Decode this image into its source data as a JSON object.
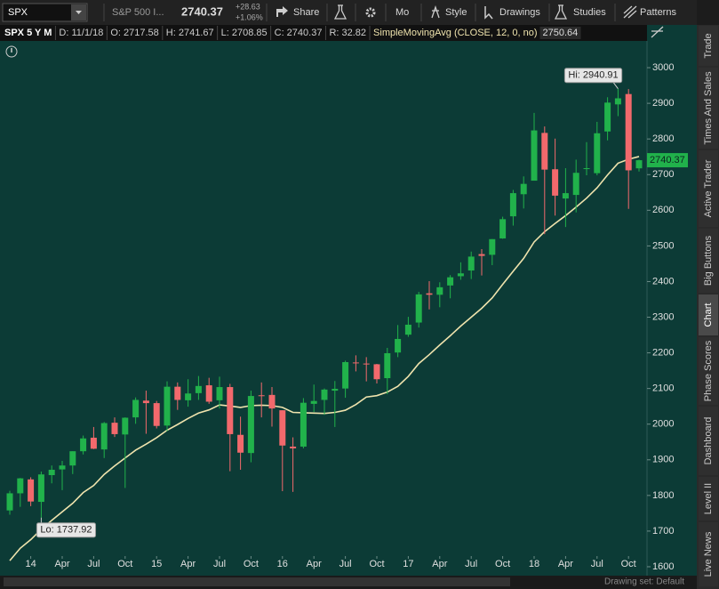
{
  "toolbar": {
    "symbol": "SPX",
    "description": "S&P 500 I...",
    "change": "+28.63",
    "change_pct": "+1.06%",
    "share": "Share",
    "period": "Mo",
    "style": "Style",
    "drawings": "Drawings",
    "studies": "Studies",
    "patterns": "Patterns"
  },
  "header": [
    "SPX 5 Y M",
    "D: 11/1/18",
    "O: 2717.58",
    "H: 2741.67",
    "L: 2708.85",
    "C: 2740.37",
    "R: 32.82"
  ],
  "sidebar_tabs": [
    "Trade",
    "Times And Sales",
    "Active Trader",
    "Big Buttons",
    "Chart",
    "Phase Scores",
    "Dashboard",
    "Level II",
    "Live News"
  ],
  "footer": "Drawing set: Default",
  "chart_data": {
    "type": "candlestick",
    "categories": [
      null,
      null,
      "14",
      null,
      null,
      "Apr",
      null,
      null,
      "Jul",
      null,
      null,
      "Oct",
      null,
      null,
      "15",
      null,
      null,
      "Apr",
      null,
      null,
      "Jul",
      null,
      null,
      "Oct",
      null,
      null,
      "16",
      null,
      null,
      "Apr",
      null,
      null,
      "Jul",
      null,
      null,
      "Oct",
      null,
      null,
      "17",
      null,
      null,
      "Apr",
      null,
      null,
      "Jul",
      null,
      null,
      "Oct",
      null,
      null,
      "18",
      null,
      null,
      "Apr",
      null,
      null,
      "Jul",
      null,
      null,
      "Oct",
      null
    ],
    "open": [
      1758,
      1806,
      1845,
      1782,
      1857,
      1873,
      1884,
      1924,
      1962,
      1929,
      2004,
      1971,
      2019,
      2066,
      2059,
      1996,
      2105,
      2067,
      2087,
      2109,
      2067,
      2104,
      1970,
      1919,
      2081,
      2082,
      2039,
      1937,
      1937,
      2057,
      2068,
      2094,
      2100,
      2173,
      2170,
      2168,
      2129,
      2201,
      2251,
      2285,
      2367,
      2363,
      2389,
      2415,
      2431,
      2477,
      2475,
      2521,
      2583,
      2645,
      2683,
      2817,
      2715,
      2633,
      2643,
      2718,
      2704,
      2821,
      2897,
      2926,
      2717.58
    ],
    "high": [
      1813,
      1849,
      1851,
      1867,
      1884,
      1897,
      1924,
      1968,
      1992,
      2006,
      2019,
      2019,
      2075,
      2094,
      2065,
      2120,
      2117,
      2126,
      2135,
      2130,
      2133,
      2113,
      2021,
      2094,
      2117,
      2104,
      2039,
      1963,
      2073,
      2111,
      2100,
      2121,
      2178,
      2193,
      2188,
      2169,
      2214,
      2278,
      2301,
      2371,
      2401,
      2398,
      2418,
      2454,
      2484,
      2491,
      2519,
      2582,
      2657,
      2695,
      2873,
      2835,
      2801,
      2718,
      2742,
      2791,
      2848,
      2917,
      2940.91,
      2940,
      2741.67
    ],
    "low": [
      1746,
      1768,
      1770,
      1737.92,
      1834,
      1815,
      1860,
      1915,
      1930,
      1905,
      1964,
      1821,
      2001,
      1973,
      1988,
      1980,
      2040,
      2049,
      2068,
      2057,
      2044,
      1868,
      1872,
      1893,
      2019,
      1993,
      1812,
      1810,
      1932,
      2034,
      2026,
      1992,
      2074,
      2148,
      2120,
      2114,
      2084,
      2188,
      2245,
      2271,
      2322,
      2328,
      2353,
      2405,
      2407,
      2417,
      2446,
      2520,
      2557,
      2605,
      2683,
      2533,
      2585,
      2553,
      2594,
      2698,
      2698,
      2796,
      2864,
      2604,
      2708.85
    ],
    "close": [
      1806,
      1848,
      1783,
      1859,
      1872,
      1884,
      1924,
      1960,
      1931,
      2003,
      1972,
      2018,
      2068,
      2059,
      1995,
      2105,
      2068,
      2086,
      2107,
      2063,
      2104,
      1972,
      1920,
      2079,
      2080,
      2044,
      1940,
      1932,
      2060,
      2065,
      2097,
      2099,
      2174,
      2171,
      2168,
      2126,
      2199,
      2239,
      2279,
      2364,
      2363,
      2384,
      2412,
      2423,
      2470,
      2472,
      2519,
      2575,
      2648,
      2674,
      2824,
      2714,
      2641,
      2648,
      2705,
      2718,
      2816,
      2902,
      2914,
      2712,
      2740.37
    ],
    "up_color": "#21b24b",
    "down_color": "#f2696c",
    "overlay": {
      "name": "SimpleMovingAvg (CLOSE, 12, 0, no)",
      "color": "#efe3ad",
      "values": [
        1617,
        1652,
        1676,
        1705,
        1730,
        1754,
        1778,
        1808,
        1828,
        1859,
        1883,
        1905,
        1927,
        1944,
        1962,
        1983,
        1999,
        2016,
        2031,
        2040,
        2054,
        2051,
        2047,
        2052,
        2053,
        2052,
        2047,
        2033,
        2032,
        2031,
        2030,
        2033,
        2039,
        2055,
        2076,
        2080,
        2090,
        2106,
        2134,
        2170,
        2195,
        2222,
        2248,
        2275,
        2300,
        2325,
        2354,
        2392,
        2429,
        2465,
        2511,
        2540,
        2563,
        2585,
        2609,
        2634,
        2663,
        2699,
        2732,
        2743,
        2750.64
      ]
    },
    "annotations": {
      "hi": "Hi: 2940.91",
      "lo": "Lo: 1737.92"
    },
    "ylim": [
      1575,
      3075
    ],
    "yticks": [
      1600,
      1700,
      1800,
      1900,
      2000,
      2100,
      2200,
      2300,
      2400,
      2500,
      2600,
      2700,
      2800,
      2900,
      3000
    ],
    "grid": false
  }
}
